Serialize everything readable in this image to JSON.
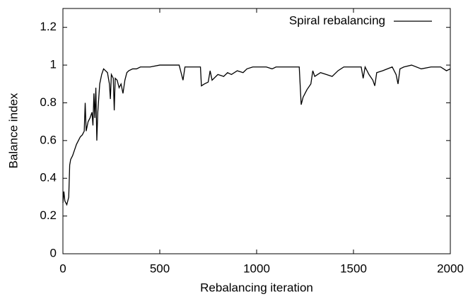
{
  "chart_data": {
    "type": "line",
    "xlabel": "Rebalancing iteration",
    "ylabel": "Balance index",
    "x": [
      0,
      5,
      10,
      20,
      30,
      35,
      40,
      50,
      60,
      70,
      80,
      90,
      100,
      110,
      115,
      120,
      130,
      140,
      150,
      155,
      160,
      165,
      170,
      175,
      180,
      190,
      200,
      210,
      220,
      230,
      240,
      245,
      250,
      260,
      265,
      270,
      280,
      290,
      300,
      310,
      320,
      330,
      340,
      360,
      380,
      400,
      450,
      500,
      550,
      600,
      610,
      620,
      630,
      680,
      710,
      715,
      730,
      750,
      760,
      770,
      800,
      830,
      850,
      870,
      900,
      930,
      950,
      980,
      1000,
      1050,
      1080,
      1100,
      1150,
      1200,
      1220,
      1230,
      1240,
      1260,
      1280,
      1290,
      1300,
      1330,
      1360,
      1390,
      1420,
      1450,
      1500,
      1540,
      1550,
      1560,
      1580,
      1600,
      1610,
      1620,
      1650,
      1700,
      1720,
      1730,
      1740,
      1760,
      1800,
      1850,
      1900,
      1950,
      1980,
      2000
    ],
    "series": [
      {
        "name": "Spiral rebalancing",
        "color": "#000000",
        "values": [
          0.27,
          0.33,
          0.28,
          0.26,
          0.3,
          0.47,
          0.5,
          0.52,
          0.55,
          0.58,
          0.6,
          0.62,
          0.63,
          0.65,
          0.8,
          0.65,
          0.7,
          0.72,
          0.75,
          0.68,
          0.85,
          0.72,
          0.88,
          0.6,
          0.75,
          0.9,
          0.95,
          0.98,
          0.97,
          0.96,
          0.9,
          0.82,
          0.95,
          0.93,
          0.76,
          0.93,
          0.92,
          0.88,
          0.9,
          0.85,
          0.92,
          0.96,
          0.97,
          0.98,
          0.98,
          0.99,
          0.99,
          1.0,
          1.0,
          1.0,
          0.96,
          0.92,
          0.99,
          0.99,
          0.99,
          0.89,
          0.9,
          0.91,
          0.97,
          0.92,
          0.95,
          0.94,
          0.96,
          0.95,
          0.97,
          0.96,
          0.98,
          0.99,
          0.99,
          0.99,
          0.98,
          0.99,
          0.99,
          0.99,
          0.99,
          0.79,
          0.83,
          0.87,
          0.9,
          0.97,
          0.94,
          0.96,
          0.95,
          0.94,
          0.97,
          0.99,
          0.99,
          0.99,
          0.93,
          0.99,
          0.95,
          0.92,
          0.89,
          0.96,
          0.97,
          0.99,
          0.95,
          0.9,
          0.98,
          0.99,
          1.0,
          0.98,
          0.99,
          0.99,
          0.97,
          0.98
        ]
      }
    ],
    "xlim": [
      0,
      2000
    ],
    "xticks": [
      0,
      500,
      1000,
      1500,
      2000
    ],
    "ylim": [
      0,
      1.3
    ],
    "yticks": [
      0,
      0.2,
      0.4,
      0.6,
      0.8,
      1,
      1.2
    ],
    "legend": "upper right",
    "grid": false
  }
}
